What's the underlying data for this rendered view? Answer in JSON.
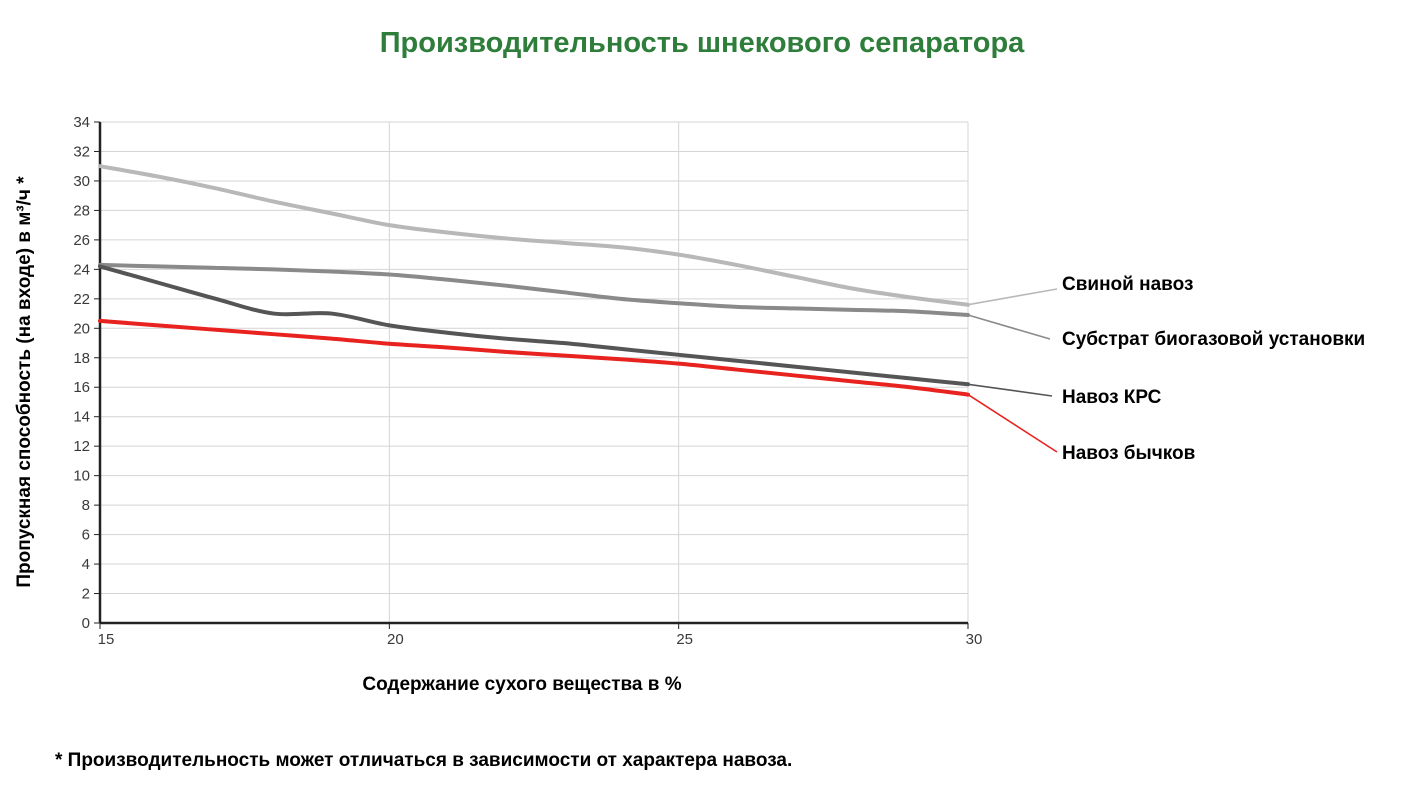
{
  "chart_data": {
    "type": "line",
    "title": "Производительность шнекового сепаратора",
    "xlabel": "Содержание сухого вещества в %",
    "ylabel": "Пропускная способность (на входе) в м³/ч *",
    "footnote": "* Производительность может отличаться в зависимости от характера навоза.",
    "xlim": [
      15,
      30
    ],
    "ylim": [
      0,
      34
    ],
    "x_ticks": [
      15,
      20,
      25,
      30
    ],
    "y_ticks": [
      0,
      2,
      4,
      6,
      8,
      10,
      12,
      14,
      16,
      18,
      20,
      22,
      24,
      26,
      28,
      30,
      32,
      34
    ],
    "grid": true,
    "legend_placement": "right",
    "series": [
      {
        "name": "Свиной навоз",
        "color": "#b8b8b8",
        "x": [
          15,
          16,
          17,
          18,
          19,
          20,
          21,
          22,
          23,
          24,
          25,
          26,
          27,
          28,
          29,
          30
        ],
        "y": [
          31.0,
          30.3,
          29.5,
          28.6,
          27.8,
          27.0,
          26.5,
          26.1,
          25.8,
          25.5,
          25.0,
          24.3,
          23.5,
          22.7,
          22.1,
          21.6
        ]
      },
      {
        "name": "Субстрат биогазовой установки",
        "color": "#8a8a8a",
        "x": [
          15,
          16,
          17,
          18,
          19,
          20,
          21,
          22,
          23,
          24,
          25,
          26,
          27,
          28,
          29,
          30
        ],
        "y": [
          24.3,
          24.2,
          24.1,
          24.0,
          23.85,
          23.65,
          23.3,
          22.9,
          22.45,
          22.0,
          21.7,
          21.45,
          21.35,
          21.25,
          21.15,
          20.9
        ]
      },
      {
        "name": "Навоз КРС",
        "color": "#555555",
        "x": [
          15,
          16,
          17,
          18,
          19,
          20,
          21,
          22,
          23,
          24,
          25,
          26,
          27,
          28,
          29,
          30
        ],
        "y": [
          24.2,
          23.1,
          22.0,
          21.0,
          21.0,
          20.2,
          19.7,
          19.3,
          19.0,
          18.6,
          18.2,
          17.8,
          17.4,
          17.0,
          16.6,
          16.2
        ]
      },
      {
        "name": "Навоз бычков",
        "color": "#e8231f",
        "x": [
          15,
          16,
          17,
          18,
          19,
          20,
          21,
          22,
          23,
          24,
          25,
          26,
          27,
          28,
          29,
          30
        ],
        "y": [
          20.5,
          20.2,
          19.9,
          19.6,
          19.3,
          18.95,
          18.7,
          18.4,
          18.15,
          17.9,
          17.6,
          17.2,
          16.8,
          16.4,
          16.0,
          15.5
        ]
      }
    ]
  },
  "colors": {
    "title": "#2e7d3b",
    "grid": "#d4d4d4",
    "axis": "#222222"
  }
}
